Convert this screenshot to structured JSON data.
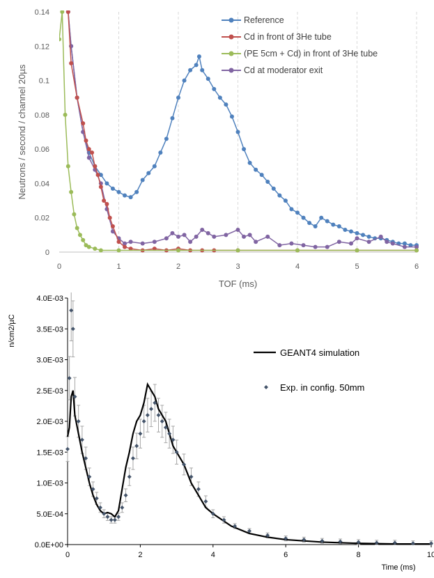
{
  "chart_data": [
    {
      "type": "line",
      "xlabel": "TOF (ms)",
      "ylabel": "Neutrons / second / channel  20µs",
      "xlim": [
        0,
        6
      ],
      "ylim": [
        0,
        0.14
      ],
      "x_ticks": [
        "0",
        "1",
        "2",
        "3",
        "4",
        "5",
        "6"
      ],
      "y_ticks": [
        "0",
        "0.02",
        "0.04",
        "0.06",
        "0.08",
        "0.1",
        "0.12",
        "0.14"
      ],
      "grid": "vertical dashed",
      "legend_position": "top-right",
      "series": [
        {
          "name": "Reference",
          "color": "#4f81bd",
          "points": [
            [
              0.15,
              0.14
            ],
            [
              0.2,
              0.12
            ],
            [
              0.3,
              0.09
            ],
            [
              0.4,
              0.07
            ],
            [
              0.5,
              0.058
            ],
            [
              0.6,
              0.05
            ],
            [
              0.7,
              0.045
            ],
            [
              0.8,
              0.04
            ],
            [
              0.9,
              0.037
            ],
            [
              1.0,
              0.035
            ],
            [
              1.1,
              0.033
            ],
            [
              1.2,
              0.032
            ],
            [
              1.3,
              0.035
            ],
            [
              1.4,
              0.042
            ],
            [
              1.5,
              0.046
            ],
            [
              1.6,
              0.05
            ],
            [
              1.7,
              0.058
            ],
            [
              1.8,
              0.066
            ],
            [
              1.9,
              0.078
            ],
            [
              2.0,
              0.09
            ],
            [
              2.1,
              0.1
            ],
            [
              2.2,
              0.106
            ],
            [
              2.3,
              0.109
            ],
            [
              2.35,
              0.114
            ],
            [
              2.4,
              0.106
            ],
            [
              2.5,
              0.101
            ],
            [
              2.6,
              0.095
            ],
            [
              2.7,
              0.09
            ],
            [
              2.8,
              0.086
            ],
            [
              2.9,
              0.079
            ],
            [
              3.0,
              0.07
            ],
            [
              3.1,
              0.06
            ],
            [
              3.2,
              0.052
            ],
            [
              3.3,
              0.048
            ],
            [
              3.4,
              0.045
            ],
            [
              3.5,
              0.041
            ],
            [
              3.6,
              0.037
            ],
            [
              3.7,
              0.033
            ],
            [
              3.8,
              0.03
            ],
            [
              3.9,
              0.025
            ],
            [
              4.0,
              0.023
            ],
            [
              4.1,
              0.02
            ],
            [
              4.2,
              0.017
            ],
            [
              4.3,
              0.015
            ],
            [
              4.4,
              0.02
            ],
            [
              4.5,
              0.018
            ],
            [
              4.6,
              0.016
            ],
            [
              4.7,
              0.015
            ],
            [
              4.8,
              0.013
            ],
            [
              4.9,
              0.012
            ],
            [
              5.0,
              0.011
            ],
            [
              5.1,
              0.01
            ],
            [
              5.2,
              0.009
            ],
            [
              5.3,
              0.008
            ],
            [
              5.4,
              0.008
            ],
            [
              5.5,
              0.007
            ],
            [
              5.6,
              0.006
            ],
            [
              5.7,
              0.005
            ],
            [
              5.8,
              0.005
            ],
            [
              5.9,
              0.004
            ],
            [
              6.0,
              0.004
            ]
          ]
        },
        {
          "name": "Cd in front of 3He tube",
          "color": "#c0504d",
          "points": [
            [
              0.15,
              0.14
            ],
            [
              0.2,
              0.11
            ],
            [
              0.3,
              0.09
            ],
            [
              0.4,
              0.075
            ],
            [
              0.45,
              0.065
            ],
            [
              0.5,
              0.06
            ],
            [
              0.55,
              0.058
            ],
            [
              0.6,
              0.05
            ],
            [
              0.65,
              0.045
            ],
            [
              0.7,
              0.038
            ],
            [
              0.75,
              0.03
            ],
            [
              0.8,
              0.028
            ],
            [
              0.85,
              0.02
            ],
            [
              0.9,
              0.015
            ],
            [
              1.0,
              0.006
            ],
            [
              1.1,
              0.003
            ],
            [
              1.2,
              0.002
            ],
            [
              1.4,
              0.001
            ],
            [
              1.6,
              0.002
            ],
            [
              1.8,
              0.001
            ],
            [
              2.0,
              0.002
            ],
            [
              2.2,
              0.001
            ],
            [
              2.4,
              0.001
            ],
            [
              2.6,
              0.001
            ],
            [
              3.0,
              0.001
            ],
            [
              4.0,
              0.001
            ],
            [
              5.0,
              0.001
            ],
            [
              6.0,
              0.001
            ]
          ]
        },
        {
          "name": "(PE 5cm + Cd) in front of 3He tube",
          "color": "#9bbb59",
          "points": [
            [
              0.0,
              0.124
            ],
            [
              0.05,
              0.14
            ],
            [
              0.1,
              0.08
            ],
            [
              0.15,
              0.05
            ],
            [
              0.2,
              0.035
            ],
            [
              0.25,
              0.022
            ],
            [
              0.3,
              0.014
            ],
            [
              0.35,
              0.01
            ],
            [
              0.4,
              0.007
            ],
            [
              0.45,
              0.004
            ],
            [
              0.5,
              0.003
            ],
            [
              0.6,
              0.002
            ],
            [
              0.7,
              0.001
            ],
            [
              1.0,
              0.001
            ],
            [
              2.0,
              0.001
            ],
            [
              3.0,
              0.001
            ],
            [
              4.0,
              0.001
            ],
            [
              5.0,
              0.001
            ],
            [
              6.0,
              0.001
            ]
          ]
        },
        {
          "name": "Cd at moderator exit",
          "color": "#8064a2",
          "points": [
            [
              0.15,
              0.14
            ],
            [
              0.2,
              0.12
            ],
            [
              0.3,
              0.09
            ],
            [
              0.4,
              0.07
            ],
            [
              0.5,
              0.055
            ],
            [
              0.6,
              0.048
            ],
            [
              0.7,
              0.04
            ],
            [
              0.8,
              0.025
            ],
            [
              0.9,
              0.012
            ],
            [
              1.0,
              0.008
            ],
            [
              1.1,
              0.005
            ],
            [
              1.2,
              0.006
            ],
            [
              1.4,
              0.005
            ],
            [
              1.6,
              0.006
            ],
            [
              1.8,
              0.008
            ],
            [
              1.9,
              0.011
            ],
            [
              2.0,
              0.009
            ],
            [
              2.1,
              0.01
            ],
            [
              2.2,
              0.006
            ],
            [
              2.3,
              0.009
            ],
            [
              2.4,
              0.013
            ],
            [
              2.5,
              0.011
            ],
            [
              2.6,
              0.009
            ],
            [
              2.8,
              0.01
            ],
            [
              3.0,
              0.013
            ],
            [
              3.1,
              0.009
            ],
            [
              3.2,
              0.01
            ],
            [
              3.3,
              0.006
            ],
            [
              3.5,
              0.009
            ],
            [
              3.7,
              0.004
            ],
            [
              3.9,
              0.005
            ],
            [
              4.1,
              0.004
            ],
            [
              4.3,
              0.003
            ],
            [
              4.5,
              0.003
            ],
            [
              4.7,
              0.006
            ],
            [
              4.9,
              0.005
            ],
            [
              5.0,
              0.008
            ],
            [
              5.2,
              0.006
            ],
            [
              5.4,
              0.009
            ],
            [
              5.5,
              0.006
            ],
            [
              5.6,
              0.005
            ],
            [
              5.8,
              0.003
            ],
            [
              6.0,
              0.003
            ]
          ]
        }
      ]
    },
    {
      "type": "scatter",
      "xlabel": "Time (ms)",
      "ylabel": "n/cm2/µC",
      "xlim": [
        0,
        10
      ],
      "ylim": [
        0,
        0.004
      ],
      "x_ticks": [
        "0",
        "2",
        "4",
        "6",
        "8",
        "10"
      ],
      "y_ticks": [
        "0.0E+00",
        "5.0E-04",
        "1.0E-03",
        "1.5E-03",
        "2.0E-03",
        "2.5E-03",
        "3.0E-03",
        "3.5E-03",
        "4.0E-03"
      ],
      "legend_position": "top-right",
      "series": [
        {
          "name": "GEANT4 simulation",
          "color": "#000000",
          "style": "line",
          "points": [
            [
              0.0,
              0.00175
            ],
            [
              0.05,
              0.0019
            ],
            [
              0.1,
              0.0024
            ],
            [
              0.15,
              0.0025
            ],
            [
              0.2,
              0.0021
            ],
            [
              0.3,
              0.0018
            ],
            [
              0.4,
              0.0015
            ],
            [
              0.5,
              0.00125
            ],
            [
              0.6,
              0.001
            ],
            [
              0.7,
              0.0008
            ],
            [
              0.8,
              0.00065
            ],
            [
              0.9,
              0.00055
            ],
            [
              1.0,
              0.0005
            ],
            [
              1.1,
              0.00052
            ],
            [
              1.2,
              0.0005
            ],
            [
              1.3,
              0.00045
            ],
            [
              1.4,
              0.00055
            ],
            [
              1.5,
              0.0009
            ],
            [
              1.6,
              0.00125
            ],
            [
              1.7,
              0.0015
            ],
            [
              1.8,
              0.0018
            ],
            [
              1.9,
              0.002
            ],
            [
              2.0,
              0.0021
            ],
            [
              2.1,
              0.0023
            ],
            [
              2.2,
              0.0026
            ],
            [
              2.3,
              0.0025
            ],
            [
              2.4,
              0.0024
            ],
            [
              2.5,
              0.0022
            ],
            [
              2.6,
              0.0021
            ],
            [
              2.7,
              0.002
            ],
            [
              2.8,
              0.0018
            ],
            [
              2.9,
              0.0016
            ],
            [
              3.0,
              0.0015
            ],
            [
              3.2,
              0.0013
            ],
            [
              3.4,
              0.001
            ],
            [
              3.6,
              0.0008
            ],
            [
              3.8,
              0.0006
            ],
            [
              4.0,
              0.0005
            ],
            [
              4.5,
              0.0003
            ],
            [
              5.0,
              0.00018
            ],
            [
              5.5,
              0.00012
            ],
            [
              6.0,
              8e-05
            ],
            [
              7.0,
              4e-05
            ],
            [
              8.0,
              2e-05
            ],
            [
              9.0,
              1e-05
            ],
            [
              10.0,
              1e-05
            ]
          ]
        },
        {
          "name": "Exp. in config. 50mm",
          "color": "#44546a",
          "style": "markers-with-errorbars",
          "points": [
            [
              0.0,
              0.00155
            ],
            [
              0.05,
              0.0027
            ],
            [
              0.1,
              0.0038
            ],
            [
              0.15,
              0.0035
            ],
            [
              0.2,
              0.0024
            ],
            [
              0.3,
              0.002
            ],
            [
              0.4,
              0.0017
            ],
            [
              0.5,
              0.0014
            ],
            [
              0.6,
              0.0011
            ],
            [
              0.7,
              0.0009
            ],
            [
              0.8,
              0.00075
            ],
            [
              0.9,
              0.0006
            ],
            [
              1.0,
              0.0005
            ],
            [
              1.1,
              0.00045
            ],
            [
              1.2,
              0.0004
            ],
            [
              1.3,
              0.0004
            ],
            [
              1.4,
              0.00045
            ],
            [
              1.5,
              0.0006
            ],
            [
              1.6,
              0.0008
            ],
            [
              1.7,
              0.0011
            ],
            [
              1.8,
              0.0014
            ],
            [
              1.9,
              0.0016
            ],
            [
              2.0,
              0.0018
            ],
            [
              2.1,
              0.002
            ],
            [
              2.2,
              0.0021
            ],
            [
              2.3,
              0.0022
            ],
            [
              2.4,
              0.0023
            ],
            [
              2.5,
              0.0021
            ],
            [
              2.6,
              0.002
            ],
            [
              2.7,
              0.0019
            ],
            [
              2.8,
              0.0018
            ],
            [
              2.9,
              0.0017
            ],
            [
              3.0,
              0.0015
            ],
            [
              3.2,
              0.0013
            ],
            [
              3.4,
              0.0011
            ],
            [
              3.6,
              0.0009
            ],
            [
              3.8,
              0.0007
            ],
            [
              4.0,
              0.0005
            ],
            [
              4.3,
              0.0004
            ],
            [
              4.6,
              0.0003
            ],
            [
              5.0,
              0.00022
            ],
            [
              5.5,
              0.00015
            ],
            [
              6.0,
              0.0001
            ],
            [
              6.5,
              8e-05
            ],
            [
              7.0,
              6e-05
            ],
            [
              7.5,
              5e-05
            ],
            [
              8.0,
              4e-05
            ],
            [
              8.5,
              3e-05
            ],
            [
              9.0,
              3e-05
            ],
            [
              9.5,
              2e-05
            ],
            [
              10.0,
              2e-05
            ]
          ]
        }
      ]
    }
  ]
}
